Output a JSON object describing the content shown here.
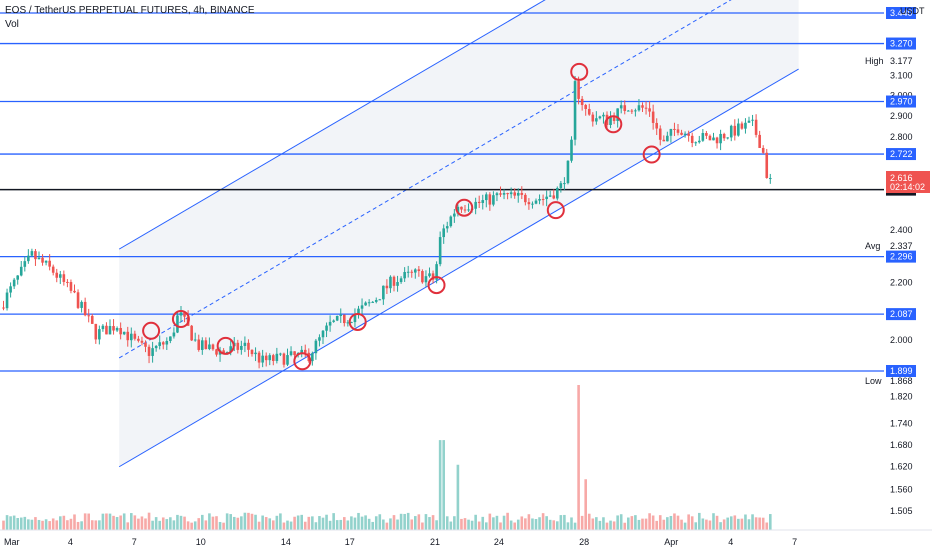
{
  "header": {
    "title": "EOS / TetherUS PERPETUAL FUTURES, 4h, BINANCE",
    "vol_label": "Vol"
  },
  "colors": {
    "up": "#26a69a",
    "down": "#ef5350",
    "level": "#2962ff",
    "support": "#131722",
    "circle": "#e0303c",
    "current": "#ef5350"
  },
  "chart_data": {
    "type": "candlestick",
    "symbol": "EOS / TetherUS PERPETUAL FUTURES",
    "interval": "4h",
    "exchange": "BINANCE",
    "y_axis": {
      "unit": "USDT",
      "scale": "log",
      "range": [
        1.47,
        3.5
      ],
      "ticks": [
        3.1,
        3.0,
        2.9,
        2.8,
        2.4,
        2.2,
        2.0,
        1.82,
        1.74,
        1.68,
        1.62,
        1.56,
        1.505
      ],
      "tick_labels": [
        "3.100",
        "3.000",
        "2.900",
        "2.800",
        "2.400",
        "2.200",
        "2.000",
        "1.820",
        "1.740",
        "1.680",
        "1.620",
        "1.560",
        "1.505"
      ]
    },
    "x_axis": {
      "ticks": [
        {
          "day": 0,
          "label": "Mar"
        },
        {
          "day": 3,
          "label": "4"
        },
        {
          "day": 6,
          "label": "7"
        },
        {
          "day": 9,
          "label": "10"
        },
        {
          "day": 13,
          "label": "14"
        },
        {
          "day": 16,
          "label": "17"
        },
        {
          "day": 20,
          "label": "21"
        },
        {
          "day": 23,
          "label": "24"
        },
        {
          "day": 27,
          "label": "28"
        },
        {
          "day": 31,
          "label": "Apr"
        },
        {
          "day": 34,
          "label": "4"
        },
        {
          "day": 37,
          "label": "7"
        }
      ]
    },
    "horizontal_levels": [
      {
        "value": 3.44,
        "label": "3.440"
      },
      {
        "value": 3.27,
        "label": "3.270"
      },
      {
        "value": 2.97,
        "label": "2.970"
      },
      {
        "value": 2.722,
        "label": "2.722"
      },
      {
        "value": 2.296,
        "label": "2.296"
      },
      {
        "value": 2.087,
        "label": "2.087"
      },
      {
        "value": 1.899,
        "label": "1.899"
      }
    ],
    "support_level": {
      "value": 2.566,
      "label": "2.566"
    },
    "current_price": {
      "value": 2.616,
      "label": "2.616",
      "countdown": "02:14:02"
    },
    "stats": [
      {
        "name": "High",
        "value": 3.177,
        "label": "3.177"
      },
      {
        "name": "Avg",
        "value": 2.337,
        "label": "2.337"
      },
      {
        "name": "Low",
        "value": 1.868,
        "label": "1.868"
      }
    ],
    "series": [
      {
        "name": "price",
        "type": "candlestick",
        "keypoints": [
          {
            "day": 0,
            "price": 2.11
          },
          {
            "day": 1.5,
            "price": 2.3
          },
          {
            "day": 2.5,
            "price": 2.24
          },
          {
            "day": 3.5,
            "price": 2.15
          },
          {
            "day": 4.5,
            "price": 2.02
          },
          {
            "day": 5.5,
            "price": 2.05
          },
          {
            "day": 6.5,
            "price": 1.98
          },
          {
            "day": 7,
            "price": 1.96
          },
          {
            "day": 8,
            "price": 2.0
          },
          {
            "day": 8.4,
            "price": 2.09
          },
          {
            "day": 9.3,
            "price": 1.98
          },
          {
            "day": 10.5,
            "price": 1.96
          },
          {
            "day": 11.5,
            "price": 1.98
          },
          {
            "day": 12.3,
            "price": 1.93
          },
          {
            "day": 13.3,
            "price": 1.94
          },
          {
            "day": 14.5,
            "price": 1.95
          },
          {
            "day": 15.5,
            "price": 2.05
          },
          {
            "day": 16.5,
            "price": 2.08
          },
          {
            "day": 17.5,
            "price": 2.13
          },
          {
            "day": 18.5,
            "price": 2.21
          },
          {
            "day": 19.5,
            "price": 2.23
          },
          {
            "day": 20.4,
            "price": 2.21
          },
          {
            "day": 20.7,
            "price": 2.38
          },
          {
            "day": 21.5,
            "price": 2.5
          },
          {
            "day": 22.5,
            "price": 2.51
          },
          {
            "day": 23.5,
            "price": 2.54
          },
          {
            "day": 24.5,
            "price": 2.53
          },
          {
            "day": 25.5,
            "price": 2.53
          },
          {
            "day": 26.3,
            "price": 2.57
          },
          {
            "day": 26.8,
            "price": 2.7
          },
          {
            "day": 27,
            "price": 3.05
          },
          {
            "day": 27.6,
            "price": 2.9
          },
          {
            "day": 28.5,
            "price": 2.88
          },
          {
            "day": 29.5,
            "price": 2.95
          },
          {
            "day": 30.5,
            "price": 2.93
          },
          {
            "day": 31.1,
            "price": 2.76
          },
          {
            "day": 31.8,
            "price": 2.85
          },
          {
            "day": 32.5,
            "price": 2.8
          },
          {
            "day": 33.5,
            "price": 2.79
          },
          {
            "day": 34.5,
            "price": 2.83
          },
          {
            "day": 35.3,
            "price": 2.86
          },
          {
            "day": 35.8,
            "price": 2.75
          },
          {
            "day": 36.0,
            "price": 2.62
          }
        ]
      },
      {
        "name": "Vol",
        "type": "bar",
        "spikes": [
          {
            "day": 20.6,
            "rel": 0.62
          },
          {
            "day": 21.4,
            "rel": 0.45
          },
          {
            "day": 27.05,
            "rel": 1.0
          },
          {
            "day": 27.4,
            "rel": 0.35
          }
        ]
      }
    ],
    "channel": {
      "lower": {
        "from": {
          "day": 5.5,
          "price": 1.62
        },
        "to": {
          "day": 35.6,
          "price": 3.02
        }
      },
      "offset_ratio": 1.435,
      "midline": true,
      "fill": "light-gray"
    },
    "touch_markers": [
      {
        "day": 7.0,
        "price": 2.03
      },
      {
        "day": 8.4,
        "price": 2.07
      },
      {
        "day": 10.5,
        "price": 1.98
      },
      {
        "day": 14.1,
        "price": 1.93
      },
      {
        "day": 16.7,
        "price": 2.06
      },
      {
        "day": 20.4,
        "price": 2.19
      },
      {
        "day": 21.7,
        "price": 2.49
      },
      {
        "day": 26.0,
        "price": 2.48
      },
      {
        "day": 27.1,
        "price": 3.12
      },
      {
        "day": 28.7,
        "price": 2.86
      },
      {
        "day": 30.5,
        "price": 2.72
      }
    ],
    "legend": "top-left"
  }
}
